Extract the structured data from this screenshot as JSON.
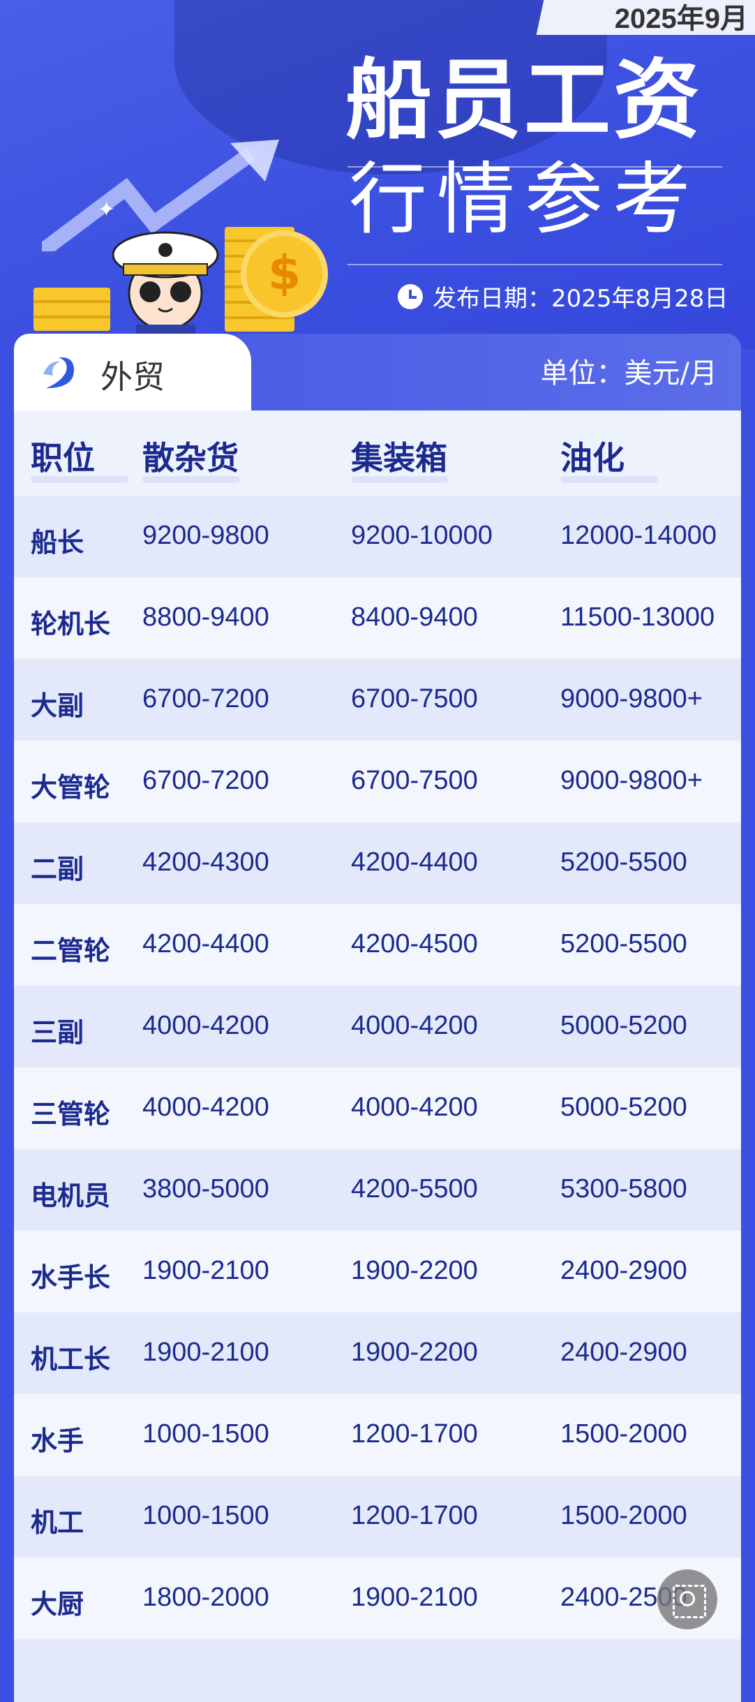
{
  "header": {
    "month": "2025年9月",
    "title": "船员工资",
    "subtitle": "行情参考",
    "publish_date": "发布日期：2025年8月28日"
  },
  "tab": {
    "label": "外贸",
    "unit": "单位：美元/月"
  },
  "table": {
    "columns": [
      "职位",
      "散杂货",
      "集装箱",
      "油化"
    ],
    "rows": [
      [
        "船长",
        "9200-9800",
        "9200-10000",
        "12000-14000"
      ],
      [
        "轮机长",
        "8800-9400",
        "8400-9400",
        "11500-13000"
      ],
      [
        "大副",
        "6700-7200",
        "6700-7500",
        "9000-9800+"
      ],
      [
        "大管轮",
        "6700-7200",
        "6700-7500",
        "9000-9800+"
      ],
      [
        "二副",
        "4200-4300",
        "4200-4400",
        "5200-5500"
      ],
      [
        "二管轮",
        "4200-4400",
        "4200-4500",
        "5200-5500"
      ],
      [
        "三副",
        "4000-4200",
        "4000-4200",
        "5000-5200"
      ],
      [
        "三管轮",
        "4000-4200",
        "4000-4200",
        "5000-5200"
      ],
      [
        "电机员",
        "3800-5000",
        "4200-5500",
        "5300-5800"
      ],
      [
        "水手长",
        "1900-2100",
        "1900-2200",
        "2400-2900"
      ],
      [
        "机工长",
        "1900-2100",
        "1900-2200",
        "2400-2900"
      ],
      [
        "水手",
        "1000-1500",
        "1200-1700",
        "1500-2000"
      ],
      [
        "机工",
        "1000-1500",
        "1200-1700",
        "1500-2000"
      ],
      [
        "大厨",
        "1800-2000",
        "1900-2100",
        "2400-2500"
      ]
    ]
  },
  "colors": {
    "background": "#3b4fe2",
    "text": "#1b2a8e",
    "row_light": "#f4f6fe",
    "row_dark": "#e3e9fa"
  }
}
